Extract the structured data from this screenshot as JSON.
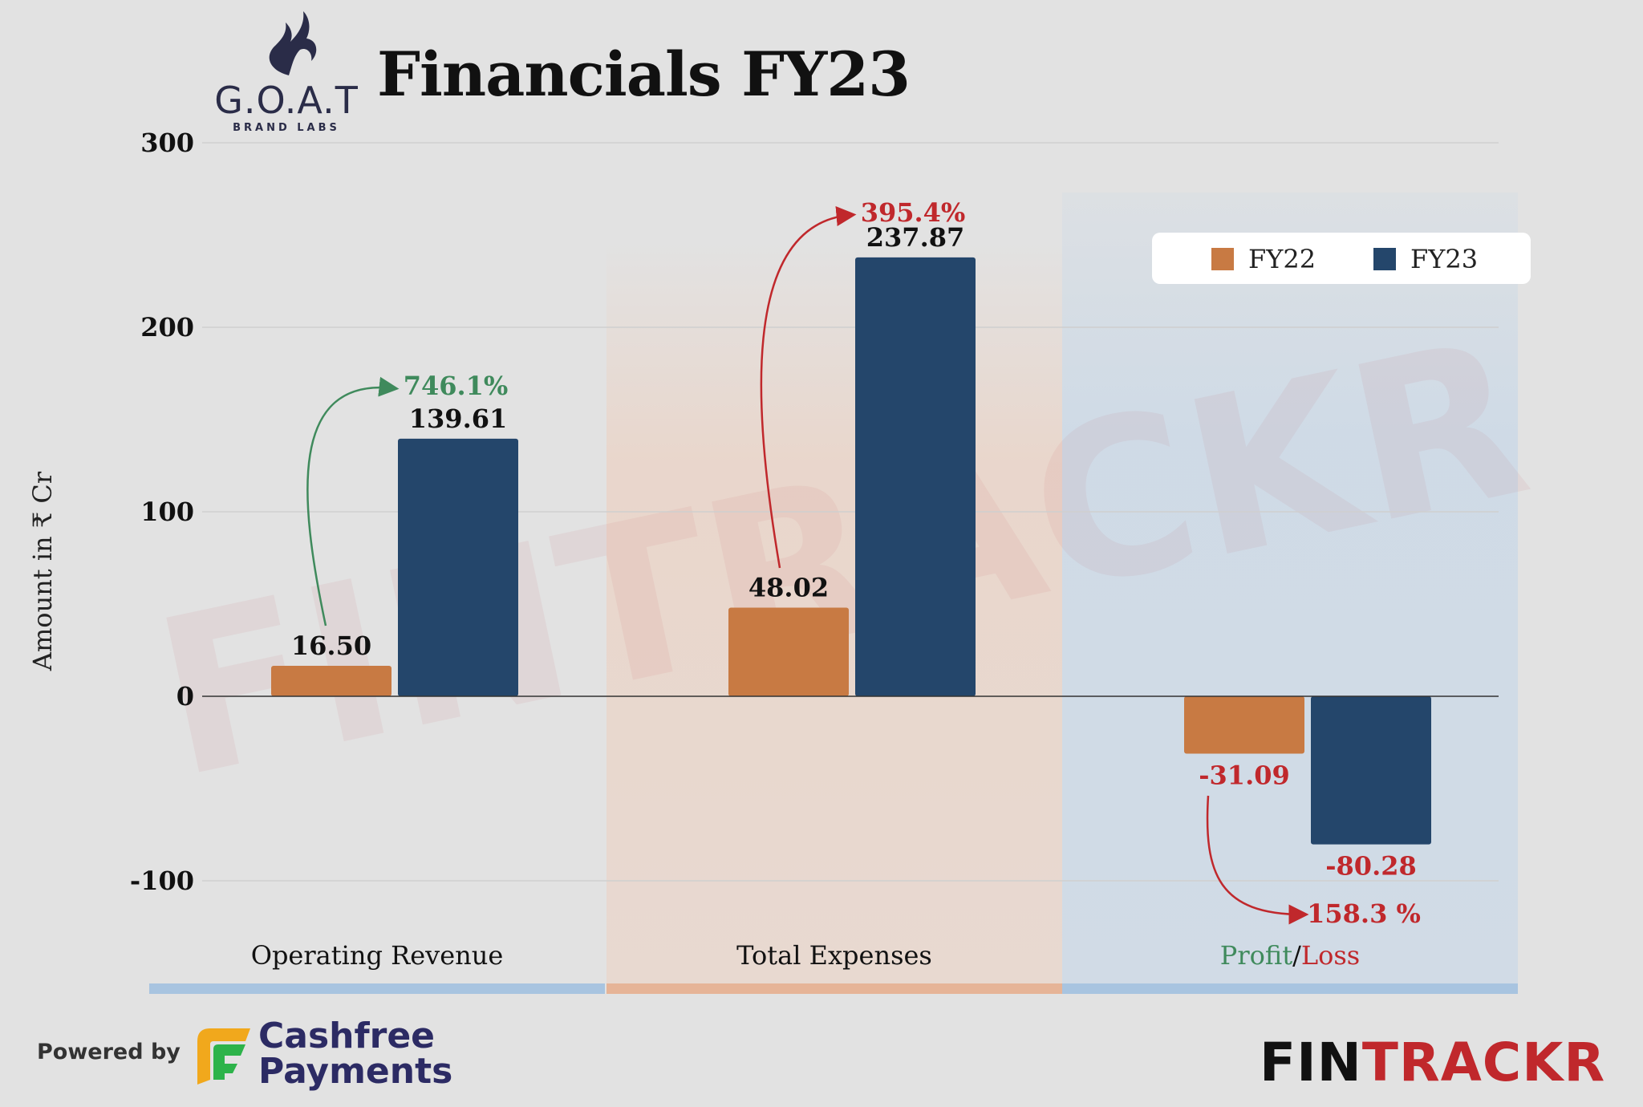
{
  "header": {
    "title": "Financials FY23",
    "logo_text": "G.O.A.T",
    "logo_subtext": "BRAND LABS"
  },
  "footer": {
    "powered_by": "Powered by",
    "cashfree_line1": "Cashfree",
    "cashfree_line2": "Payments",
    "brand_part1": "FIN",
    "brand_part2": "TRACKR"
  },
  "colors": {
    "fy22": "#c87a43",
    "fy23": "#24466b",
    "positive": "#3f8a5c",
    "negative": "#c0282c"
  },
  "chart_data": {
    "type": "bar",
    "title": "Financials FY23",
    "ylabel": "Amount in ₹ Cr",
    "ylim": [
      -150,
      300
    ],
    "yticks": [
      300,
      200,
      100,
      0,
      -100
    ],
    "grid": true,
    "legend_position": "top-right",
    "categories": [
      "Operating Revenue",
      "Total Expenses",
      "Profit/Loss"
    ],
    "category_parts": [
      [
        {
          "text": "Operating Revenue",
          "color": "#111111"
        }
      ],
      [
        {
          "text": "Total Expenses",
          "color": "#111111"
        }
      ],
      [
        {
          "text": "Profit",
          "color": "#3f8a5c"
        },
        {
          "text": "/",
          "color": "#111111"
        },
        {
          "text": "Loss",
          "color": "#c0282c"
        }
      ]
    ],
    "series": [
      {
        "name": "FY22",
        "color": "#c87a43",
        "values": [
          16.5,
          48.02,
          -31.09
        ],
        "labels": [
          "16.50",
          "48.02",
          "-31.09"
        ]
      },
      {
        "name": "FY23",
        "color": "#24466b",
        "values": [
          139.61,
          237.87,
          -80.28
        ],
        "labels": [
          "139.61",
          "237.87",
          "-80.28"
        ]
      }
    ],
    "growth_annotations": [
      {
        "category": "Operating Revenue",
        "text": "746.1%",
        "color": "#3f8a5c"
      },
      {
        "category": "Total Expenses",
        "text": "395.4%",
        "color": "#c0282c"
      },
      {
        "category": "Profit/Loss",
        "text": "158.3 %",
        "color": "#c0282c"
      }
    ],
    "watermark": "FINTRACKR"
  }
}
